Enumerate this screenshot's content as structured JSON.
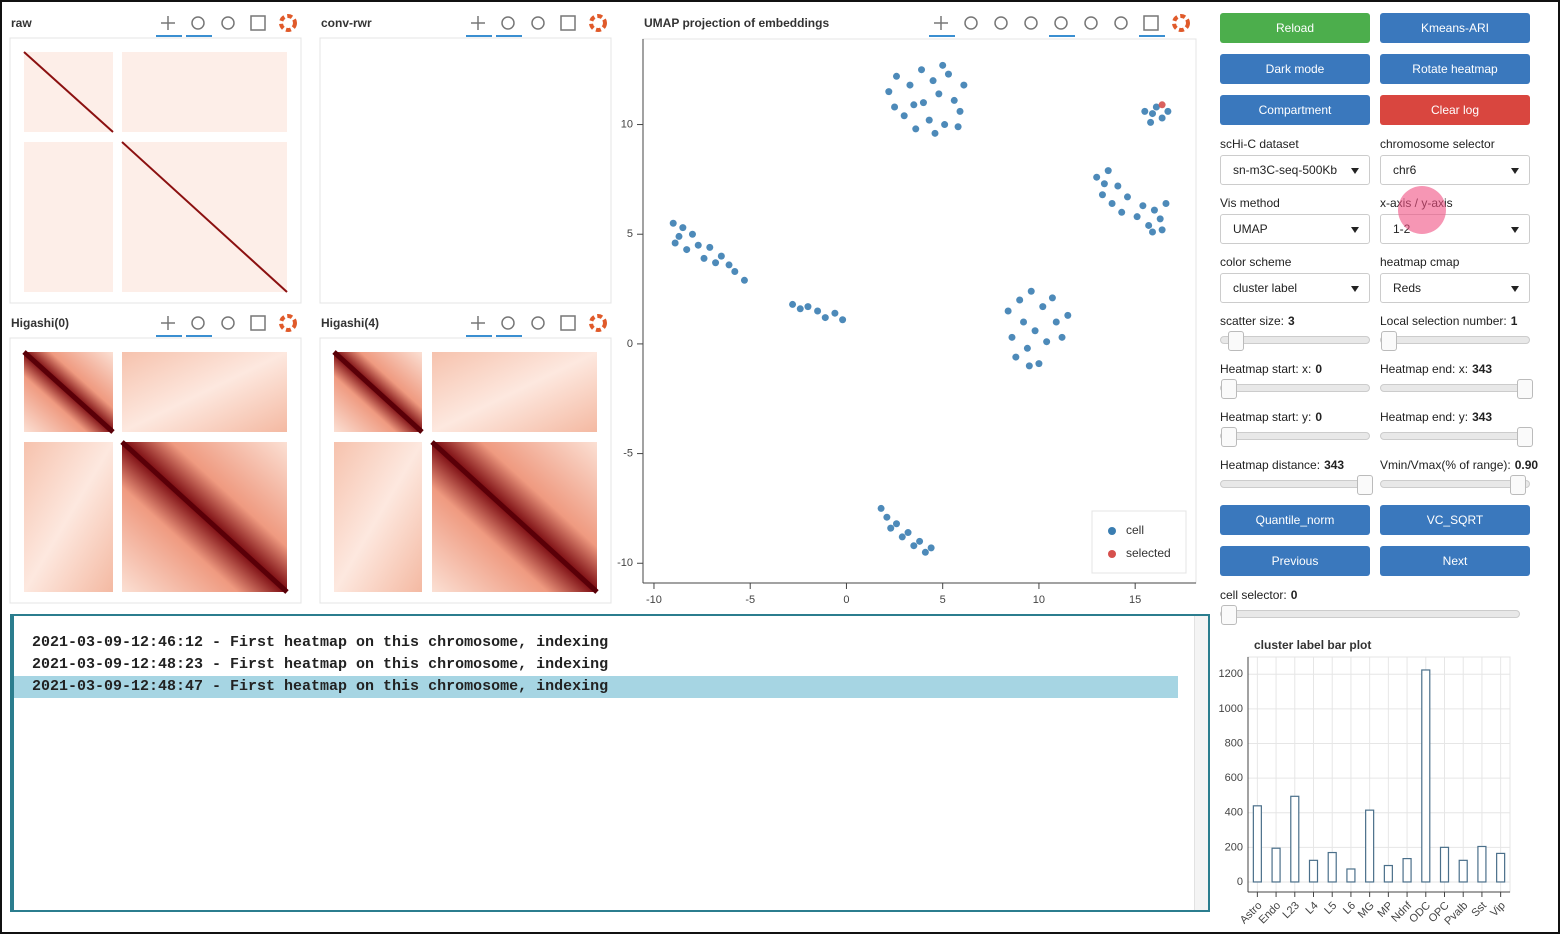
{
  "panels": [
    {
      "title": "raw"
    },
    {
      "title": "conv-rwr"
    },
    {
      "title": "Higashi(0)"
    },
    {
      "title": "Higashi(4)"
    }
  ],
  "chart_data": [
    {
      "type": "scatter",
      "title": "UMAP projection of embeddings",
      "xlim": [
        -10.57,
        18.16
      ],
      "ylim": [
        -10.9,
        13.9
      ],
      "xticks": [
        -10,
        -5,
        0,
        5,
        10,
        15
      ],
      "yticks": [
        -10,
        -5,
        0,
        5,
        10
      ],
      "grid": false,
      "legend": "bottom-right",
      "series": [
        {
          "name": "cell",
          "color": "#3a7db1",
          "x": [
            2.2,
            2.6,
            3.0,
            3.3,
            3.6,
            3.9,
            4.0,
            4.3,
            4.5,
            4.8,
            5.1,
            5.3,
            5.6,
            5.9,
            6.1,
            2.5,
            3.5,
            4.6,
            5.0,
            5.8,
            15.5,
            15.8,
            16.1,
            16.4,
            16.7,
            15.9,
            13.0,
            13.3,
            13.6,
            13.8,
            14.1,
            14.3,
            13.4,
            14.6,
            15.1,
            15.4,
            15.7,
            16.0,
            16.3,
            16.6,
            15.9,
            16.4,
            -9.0,
            -8.7,
            -8.5,
            -8.3,
            -8.0,
            -7.7,
            -7.4,
            -7.1,
            -6.8,
            -6.5,
            -6.1,
            -5.8,
            -5.3,
            -8.9,
            -2.8,
            -2.4,
            -2.0,
            -1.5,
            -1.1,
            -0.6,
            -0.2,
            8.4,
            8.6,
            8.8,
            9.0,
            9.2,
            9.4,
            9.6,
            9.8,
            10.0,
            10.2,
            10.4,
            10.7,
            10.9,
            11.2,
            11.5,
            9.5,
            1.8,
            2.1,
            2.3,
            2.6,
            2.9,
            3.2,
            3.5,
            3.8,
            4.1,
            4.4
          ],
          "values": [
            11.5,
            12.2,
            10.4,
            11.8,
            9.8,
            12.5,
            11.0,
            10.2,
            12.0,
            11.4,
            10.0,
            12.3,
            11.1,
            10.6,
            11.8,
            10.8,
            10.9,
            9.6,
            12.7,
            9.9,
            10.6,
            10.1,
            10.8,
            10.3,
            10.6,
            10.5,
            7.6,
            6.8,
            7.9,
            6.4,
            7.2,
            6.0,
            7.3,
            6.7,
            5.8,
            6.3,
            5.4,
            6.1,
            5.7,
            6.4,
            5.1,
            5.2,
            5.5,
            4.9,
            5.3,
            4.3,
            5.0,
            4.5,
            3.9,
            4.4,
            3.7,
            4.0,
            3.6,
            3.3,
            2.9,
            4.6,
            1.8,
            1.6,
            1.7,
            1.5,
            1.2,
            1.4,
            1.1,
            1.5,
            0.3,
            -0.6,
            2.0,
            1.0,
            -0.2,
            2.4,
            0.6,
            -0.9,
            1.7,
            0.1,
            2.1,
            1.0,
            0.3,
            1.3,
            -1.0,
            -7.5,
            -7.9,
            -8.4,
            -8.2,
            -8.8,
            -8.6,
            -9.2,
            -9.0,
            -9.5,
            -9.3
          ]
        },
        {
          "name": "selected",
          "color": "#d6504d",
          "x": [
            16.4
          ],
          "values": [
            10.9
          ]
        }
      ]
    },
    {
      "type": "bar",
      "title": "cluster label bar plot",
      "categories": [
        "Astro",
        "Endo",
        "L23",
        "L4",
        "L5",
        "L6",
        "MG",
        "MP",
        "Ndnf",
        "ODC",
        "OPC",
        "Pvalb",
        "Sst",
        "Vip"
      ],
      "values": [
        440,
        195,
        495,
        125,
        170,
        75,
        415,
        95,
        135,
        1225,
        200,
        125,
        205,
        165
      ],
      "color": "#4a6f8a",
      "ylim": [
        -58,
        1300
      ],
      "yticks": [
        0,
        200,
        400,
        600,
        800,
        1000,
        1200
      ],
      "grid": true
    }
  ],
  "top_buttons": [
    {
      "label": "Reload",
      "color": "#4cae4c"
    },
    {
      "label": "Kmeans-ARI",
      "color": "#3a78bd"
    },
    {
      "label": "Dark mode",
      "color": "#3a78bd"
    },
    {
      "label": "Rotate heatmap",
      "color": "#3a78bd"
    },
    {
      "label": "Compartment",
      "color": "#3a78bd"
    },
    {
      "label": "Clear log",
      "color": "#d9463f"
    }
  ],
  "selects": [
    {
      "label": "scHi-C dataset",
      "value": "sn-m3C-seq-500Kb"
    },
    {
      "label": "chromosome selector",
      "value": "chr6"
    },
    {
      "label": "Vis method",
      "value": "UMAP"
    },
    {
      "label": "x-axis / y-axis",
      "value": "1-2"
    },
    {
      "label": "color scheme",
      "value": "cluster label"
    },
    {
      "label": "heatmap cmap",
      "value": "Reds"
    }
  ],
  "sliders": [
    {
      "label": "scatter size:",
      "value": 3
    },
    {
      "label": "Local selection number:",
      "value": 1
    },
    {
      "label": "Heatmap start: x:",
      "value": 0
    },
    {
      "label": "Heatmap end: x:",
      "value": 343
    },
    {
      "label": "Heatmap start: y:",
      "value": 0
    },
    {
      "label": "Heatmap end: y:",
      "value": 343
    },
    {
      "label": "Heatmap distance:",
      "value": 343
    },
    {
      "label": "Vmin/Vmax(% of range):",
      "value": "0.90"
    }
  ],
  "bottom_buttons": [
    {
      "label": "Quantile_norm",
      "color": "#3a78bd"
    },
    {
      "label": "VC_SQRT",
      "color": "#3a78bd"
    },
    {
      "label": "Previous",
      "color": "#3a78bd"
    },
    {
      "label": "Next",
      "color": "#3a78bd"
    }
  ],
  "cell_selector": {
    "label": "cell selector:",
    "value": 0
  },
  "log": [
    "2021-03-09-12:46:12 - First heatmap on this chromosome, indexing",
    "2021-03-09-12:48:23 - First heatmap on this chromosome, indexing",
    "2021-03-09-12:48:47 - First heatmap on this chromosome, indexing"
  ]
}
